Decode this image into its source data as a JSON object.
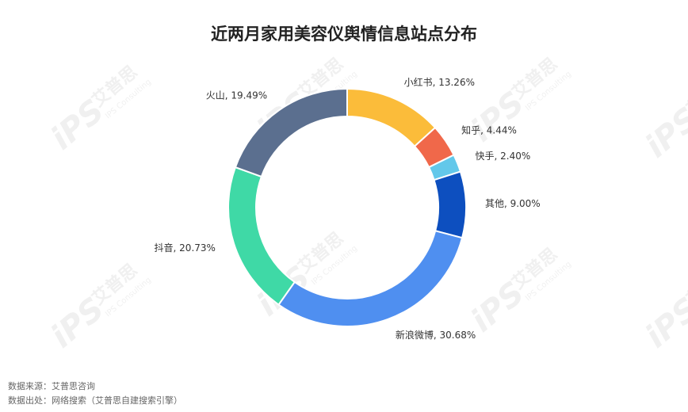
{
  "chart_data": {
    "type": "donut",
    "title": "近两月家用美容仪舆情信息站点分布",
    "values": [
      13.26,
      4.44,
      2.4,
      9.0,
      30.68,
      20.73,
      19.49
    ],
    "value_labels": [
      "小红书, 13.26%",
      "知乎, 4.44%",
      "快手, 2.40%",
      "其他, 9.00%",
      "新浪微博, 30.68%",
      "抖音, 20.73%",
      "火山, 19.49%"
    ],
    "colors": [
      "#fbbc3a",
      "#f0684a",
      "#63c8ea",
      "#0d4fbf",
      "#4f8ff0",
      "#3fd9a6",
      "#5b6f8f"
    ],
    "footnotes": [
      "数据来源：艾普思咨询",
      "数据出处：网络搜索（艾普思自建搜索引擎）"
    ],
    "watermark": {
      "logo": "iPS",
      "brand": "艾普思",
      "sub": "IPS Consulting"
    }
  }
}
